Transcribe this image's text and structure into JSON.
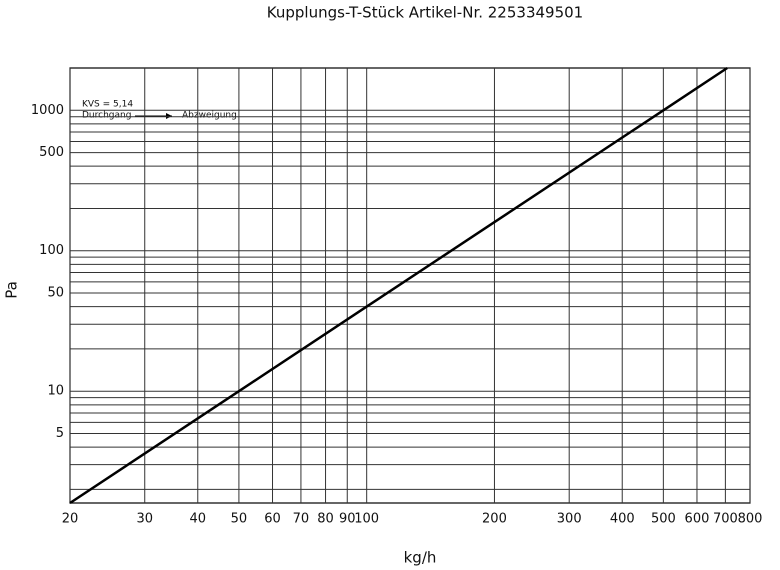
{
  "chart_data": {
    "type": "line",
    "title": "Kupplungs-T-Stück Artikel-Nr. 2253349501",
    "xlabel": "kg/h",
    "ylabel": "Pa",
    "log_x": true,
    "log_y": true,
    "grid": true,
    "annotations": [
      "KVS = 5,14",
      "Durchgang",
      "Abzweigung"
    ],
    "x": [
      20,
      50,
      100,
      200,
      500,
      707
    ],
    "series": [
      {
        "name": null,
        "color": "#000000",
        "values": [
          1.6,
          10,
          40,
          160,
          1000,
          2000
        ]
      }
    ],
    "xlim": [
      20,
      800
    ],
    "ylim": [
      1.6,
      2000
    ],
    "xticks": [
      20,
      30,
      40,
      50,
      60,
      70,
      80,
      90,
      100,
      200,
      300,
      400,
      500,
      600,
      700,
      800
    ],
    "yticks": [
      5,
      10,
      50,
      100,
      500,
      1000
    ],
    "yminor": [
      2,
      3,
      4,
      6,
      7,
      8,
      9,
      20,
      30,
      40,
      60,
      70,
      80,
      90,
      200,
      300,
      400,
      600,
      700,
      800,
      900
    ]
  }
}
